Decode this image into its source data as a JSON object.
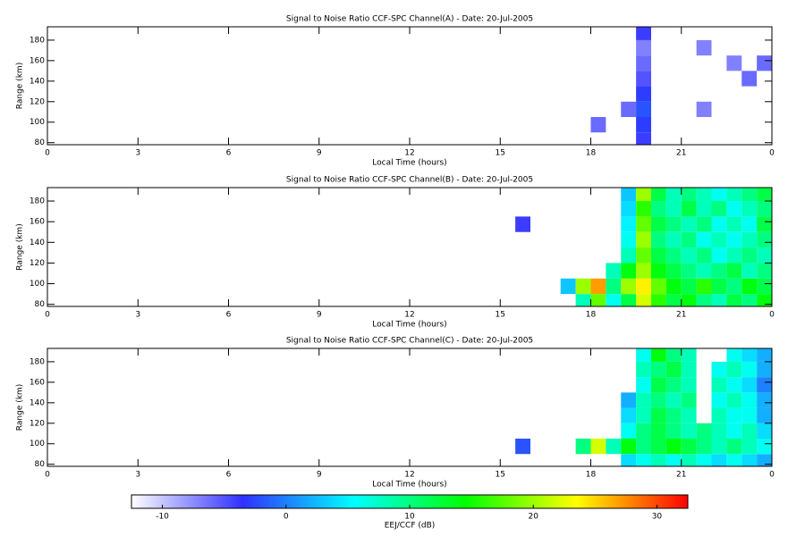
{
  "chart_data": [
    {
      "type": "heatmap",
      "title": "Signal to Noise Ratio CCF-SPC Channel(A) - Date: 20-Jul-2005",
      "xlabel": "Local Time (hours)",
      "ylabel": "Range (km)",
      "xlim": [
        0,
        24
      ],
      "xticks": [
        0,
        3,
        6,
        9,
        12,
        15,
        18,
        21,
        {
          "value": 24,
          "label": "0"
        }
      ],
      "ylim": [
        78,
        193
      ],
      "yticks": [
        80,
        100,
        120,
        140,
        160,
        180
      ],
      "x": [
        15,
        15.5,
        16,
        16.5,
        17,
        17.5,
        18,
        18.5,
        19,
        19.5,
        20,
        20.5,
        21,
        21.5,
        22,
        22.5,
        23,
        23.5,
        24
      ],
      "y": [
        78,
        90,
        105,
        120,
        135,
        150,
        165,
        180,
        193
      ],
      "values": [
        [
          null,
          null,
          null,
          null,
          null,
          null,
          null,
          null,
          null,
          -4,
          null,
          null,
          null,
          null,
          null,
          null,
          null,
          null
        ],
        [
          null,
          null,
          null,
          null,
          null,
          null,
          -6,
          null,
          null,
          -3,
          null,
          null,
          null,
          null,
          null,
          null,
          null,
          null
        ],
        [
          null,
          null,
          null,
          null,
          null,
          null,
          null,
          null,
          -6,
          -2,
          null,
          null,
          null,
          -7,
          null,
          null,
          null,
          null
        ],
        [
          null,
          null,
          null,
          null,
          null,
          null,
          null,
          null,
          null,
          -3,
          null,
          null,
          null,
          null,
          null,
          null,
          null,
          null
        ],
        [
          null,
          null,
          null,
          null,
          null,
          null,
          null,
          null,
          null,
          -5,
          null,
          null,
          null,
          null,
          null,
          null,
          -6,
          null
        ],
        [
          null,
          null,
          null,
          null,
          null,
          null,
          null,
          null,
          null,
          -6,
          null,
          null,
          null,
          null,
          null,
          -7,
          null,
          -6
        ],
        [
          null,
          null,
          null,
          null,
          null,
          null,
          null,
          null,
          null,
          -7,
          null,
          null,
          null,
          -7,
          null,
          null,
          null,
          null
        ],
        [
          null,
          null,
          null,
          null,
          null,
          null,
          null,
          null,
          null,
          -4,
          null,
          null,
          null,
          null,
          null,
          null,
          null,
          null
        ]
      ]
    },
    {
      "type": "heatmap",
      "title": "Signal to Noise Ratio CCF-SPC Channel(B) - Date: 20-Jul-2005",
      "xlabel": "Local Time (hours)",
      "ylabel": "Range (km)",
      "xlim": [
        0,
        24
      ],
      "xticks": [
        0,
        3,
        6,
        9,
        12,
        15,
        18,
        21,
        {
          "value": 24,
          "label": "0"
        }
      ],
      "ylim": [
        78,
        193
      ],
      "yticks": [
        80,
        100,
        120,
        140,
        160,
        180
      ],
      "x": [
        15,
        15.5,
        16,
        16.5,
        17,
        17.5,
        18,
        18.5,
        19,
        19.5,
        20,
        20.5,
        21,
        21.5,
        22,
        22.5,
        23,
        23.5,
        24
      ],
      "y": [
        78,
        90,
        105,
        120,
        135,
        150,
        165,
        180,
        193
      ],
      "values": [
        [
          null,
          null,
          null,
          null,
          null,
          8,
          18,
          6,
          12,
          22,
          16,
          12,
          14,
          10,
          8,
          12,
          10,
          14
        ],
        [
          null,
          null,
          null,
          null,
          3,
          20,
          27,
          10,
          20,
          24,
          18,
          14,
          12,
          16,
          12,
          10,
          14,
          12
        ],
        [
          null,
          null,
          null,
          null,
          null,
          null,
          null,
          8,
          14,
          20,
          14,
          12,
          10,
          8,
          10,
          12,
          8,
          10
        ],
        [
          null,
          null,
          null,
          null,
          null,
          null,
          null,
          null,
          8,
          18,
          12,
          10,
          8,
          10,
          6,
          8,
          10,
          8
        ],
        [
          null,
          null,
          null,
          null,
          null,
          null,
          null,
          null,
          6,
          20,
          10,
          8,
          10,
          6,
          8,
          6,
          8,
          10
        ],
        [
          null,
          -4,
          null,
          null,
          null,
          null,
          null,
          null,
          5,
          18,
          12,
          10,
          8,
          10,
          6,
          8,
          6,
          12
        ],
        [
          null,
          null,
          null,
          null,
          null,
          null,
          null,
          null,
          4,
          16,
          10,
          8,
          12,
          8,
          10,
          6,
          8,
          10
        ],
        [
          null,
          null,
          null,
          null,
          null,
          null,
          null,
          null,
          3,
          20,
          12,
          8,
          10,
          8,
          6,
          8,
          10,
          12
        ]
      ]
    },
    {
      "type": "heatmap",
      "title": "Signal to Noise Ratio CCF-SPC Channel(C) - Date: 20-Jul-2005",
      "xlabel": "Local Time (hours)",
      "ylabel": "Range (km)",
      "xlim": [
        0,
        24
      ],
      "xticks": [
        0,
        3,
        6,
        9,
        12,
        15,
        18,
        21,
        {
          "value": 24,
          "label": "0"
        }
      ],
      "ylim": [
        78,
        193
      ],
      "yticks": [
        80,
        100,
        120,
        140,
        160,
        180
      ],
      "x": [
        15,
        15.5,
        16,
        16.5,
        17,
        17.5,
        18,
        18.5,
        19,
        19.5,
        20,
        20.5,
        21,
        21.5,
        22,
        22.5,
        23,
        23.5,
        24
      ],
      "y": [
        78,
        90,
        105,
        120,
        135,
        150,
        165,
        180,
        193
      ],
      "values": [
        [
          null,
          null,
          null,
          null,
          null,
          null,
          null,
          null,
          4,
          6,
          8,
          6,
          8,
          6,
          4,
          6,
          4,
          2
        ],
        [
          null,
          -2,
          null,
          null,
          null,
          10,
          22,
          8,
          14,
          10,
          12,
          14,
          12,
          10,
          8,
          10,
          8,
          6
        ],
        [
          null,
          null,
          null,
          null,
          null,
          null,
          null,
          null,
          6,
          10,
          12,
          10,
          8,
          10,
          8,
          6,
          8,
          4
        ],
        [
          null,
          null,
          null,
          null,
          null,
          null,
          null,
          null,
          4,
          8,
          12,
          10,
          8,
          null,
          8,
          6,
          6,
          2
        ],
        [
          null,
          null,
          null,
          null,
          null,
          null,
          null,
          null,
          2,
          8,
          10,
          8,
          10,
          null,
          6,
          8,
          6,
          2
        ],
        [
          null,
          null,
          null,
          null,
          null,
          null,
          null,
          null,
          null,
          6,
          12,
          10,
          8,
          null,
          8,
          6,
          4,
          0
        ],
        [
          null,
          null,
          null,
          null,
          null,
          null,
          null,
          null,
          null,
          8,
          10,
          12,
          8,
          null,
          6,
          8,
          6,
          2
        ],
        [
          null,
          null,
          null,
          null,
          null,
          null,
          null,
          null,
          null,
          6,
          14,
          10,
          8,
          null,
          null,
          6,
          4,
          2
        ]
      ]
    },
    {
      "type": "colorbar",
      "label": "EEJ/CCF (dB)",
      "zlim": [
        -12.5,
        32.5
      ],
      "zticks": [
        -10,
        0,
        10,
        20,
        30
      ],
      "colorscale": [
        "#ffffff",
        "#3030ff",
        "#00ffff",
        "#00ff00",
        "#ffff00",
        "#ff0000"
      ]
    }
  ]
}
